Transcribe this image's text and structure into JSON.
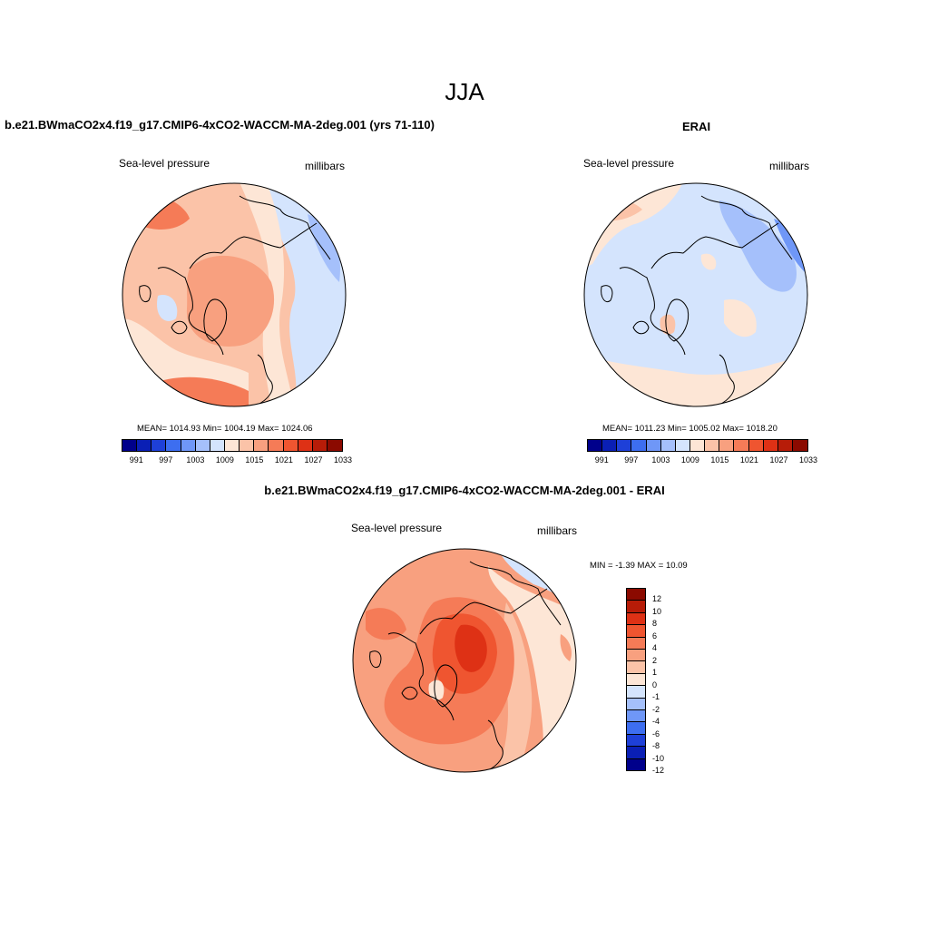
{
  "figure": {
    "title": "JJA",
    "panel1": {
      "title": "b.e21.BWmaCO2x4.f19_g17.CMIP6-4xCO2-WACCM-MA-2deg.001 (yrs 71-110)",
      "variable": "Sea-level pressure",
      "units": "millibars",
      "stats": "MEAN= 1014.93  Min= 1004.19  Max= 1024.06"
    },
    "panel2": {
      "title": "ERAI",
      "variable": "Sea-level pressure",
      "units": "millibars",
      "stats": "MEAN= 1011.23  Min= 1005.02  Max= 1018.20"
    },
    "panel3": {
      "title": "b.e21.BWmaCO2x4.f19_g17.CMIP6-4xCO2-WACCM-MA-2deg.001 - ERAI",
      "variable": "Sea-level pressure",
      "units": "millibars",
      "minmax": "MIN =  -1.39 MAX =  10.09"
    }
  },
  "colorbar_abs": {
    "tick_labels": [
      "991",
      "997",
      "1003",
      "1009",
      "1015",
      "1021",
      "1027",
      "1033"
    ],
    "colors": [
      "#00008b",
      "#0a1fb5",
      "#1e40d8",
      "#3d6ef0",
      "#6f97f7",
      "#a5c0fb",
      "#d4e4fd",
      "#fde6d6",
      "#fbc3a8",
      "#f8a07f",
      "#f57b57",
      "#ef5530",
      "#de3115",
      "#b71c08",
      "#8b0a00"
    ]
  },
  "colorbar_diff": {
    "tick_labels": [
      "12",
      "10",
      "8",
      "6",
      "4",
      "2",
      "1",
      "0",
      "-1",
      "-2",
      "-4",
      "-6",
      "-8",
      "-10",
      "-12"
    ],
    "colors": [
      "#8b0a00",
      "#b71c08",
      "#de3115",
      "#ef5530",
      "#f57b57",
      "#f8a07f",
      "#fbc3a8",
      "#fde6d6",
      "#d4e4fd",
      "#a5c0fb",
      "#6f97f7",
      "#3d6ef0",
      "#1e40d8",
      "#0a1fb5",
      "#00008b"
    ]
  }
}
